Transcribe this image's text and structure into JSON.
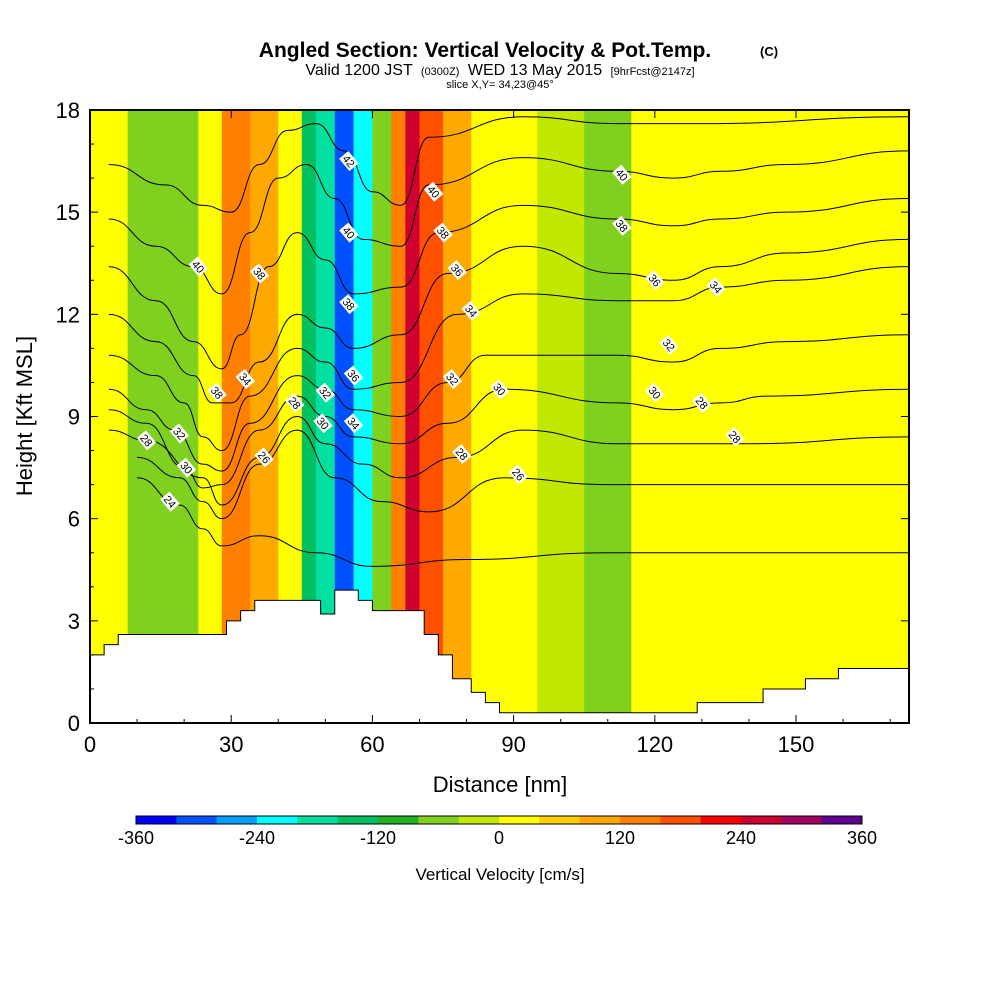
{
  "chart_data": {
    "type": "heatmap",
    "title": "Angled Section: Vertical Velocity & Pot.Temp.",
    "title_mark": "(C)",
    "subtitle": {
      "pre": "Valid 1200 JST",
      "utc": "(0300Z)",
      "date": "WED 13 May 2015",
      "fcst": "[9hrFcst@2147z]"
    },
    "slice_label": "slice X,Y= 34,23@45°",
    "xlabel": "Distance [nm]",
    "ylabel": "Height [Kft MSL]",
    "xlim": [
      0,
      174
    ],
    "ylim": [
      0,
      18
    ],
    "x_ticks": [
      "0",
      "30",
      "60",
      "90",
      "120",
      "150"
    ],
    "y_ticks": [
      "0",
      "3",
      "6",
      "9",
      "12",
      "15",
      "18"
    ],
    "colorbar": {
      "label": "Vertical Velocity [cm/s]",
      "range": [
        -360,
        360
      ],
      "tick_labels": [
        "-360",
        "-240",
        "-120",
        "0",
        "120",
        "240",
        "360"
      ],
      "colors": [
        "#0000ff",
        "#0050ff",
        "#00a0ff",
        "#00ffff",
        "#00e0a0",
        "#00c060",
        "#20b020",
        "#80d020",
        "#c0e800",
        "#ffff00",
        "#ffd000",
        "#ffa800",
        "#ff8000",
        "#ff5000",
        "#ff0000",
        "#d00030",
        "#a00060",
        "#600090"
      ]
    },
    "velocity_bands": [
      {
        "x": [
          0,
          8
        ],
        "value": 15
      },
      {
        "x": [
          8,
          23
        ],
        "value": -70
      },
      {
        "x": [
          23,
          28
        ],
        "value": 30
      },
      {
        "x": [
          28,
          34
        ],
        "value": 150
      },
      {
        "x": [
          34,
          40
        ],
        "value": 110
      },
      {
        "x": [
          40,
          45
        ],
        "value": 20
      },
      {
        "x": [
          45,
          48
        ],
        "value": -130
      },
      {
        "x": [
          48,
          52
        ],
        "value": -200
      },
      {
        "x": [
          52,
          56
        ],
        "value": -300
      },
      {
        "x": [
          56,
          60
        ],
        "value": -220
      },
      {
        "x": [
          60,
          64
        ],
        "value": -60
      },
      {
        "x": [
          64,
          67
        ],
        "value": 150
      },
      {
        "x": [
          67,
          70
        ],
        "value": 260
      },
      {
        "x": [
          70,
          75
        ],
        "value": 180
      },
      {
        "x": [
          75,
          81
        ],
        "value": 80
      },
      {
        "x": [
          81,
          95
        ],
        "value": 15
      },
      {
        "x": [
          95,
          105
        ],
        "value": -10
      },
      {
        "x": [
          105,
          115
        ],
        "value": -80
      },
      {
        "x": [
          115,
          128
        ],
        "value": 30
      },
      {
        "x": [
          128,
          150
        ],
        "value": 10
      },
      {
        "x": [
          150,
          174
        ],
        "value": 20
      }
    ],
    "terrain": [
      [
        0,
        2
      ],
      [
        3,
        2
      ],
      [
        3,
        2.3
      ],
      [
        6,
        2.3
      ],
      [
        6,
        2.6
      ],
      [
        29,
        2.6
      ],
      [
        29,
        3
      ],
      [
        32,
        3
      ],
      [
        32,
        3.3
      ],
      [
        35,
        3.3
      ],
      [
        35,
        3.6
      ],
      [
        49,
        3.6
      ],
      [
        49,
        3.2
      ],
      [
        52,
        3.2
      ],
      [
        52,
        3.9
      ],
      [
        57,
        3.9
      ],
      [
        57,
        3.6
      ],
      [
        60,
        3.6
      ],
      [
        60,
        3.3
      ],
      [
        71,
        3.3
      ],
      [
        71,
        2.6
      ],
      [
        74,
        2.6
      ],
      [
        74,
        2
      ],
      [
        77,
        2
      ],
      [
        77,
        1.3
      ],
      [
        81,
        1.3
      ],
      [
        81,
        0.9
      ],
      [
        84,
        0.9
      ],
      [
        84,
        0.6
      ],
      [
        87,
        0.6
      ],
      [
        87,
        0.3
      ],
      [
        129,
        0.3
      ],
      [
        129,
        0.6
      ],
      [
        143,
        0.6
      ],
      [
        143,
        1
      ],
      [
        152,
        1
      ],
      [
        152,
        1.3
      ],
      [
        159,
        1.3
      ],
      [
        159,
        1.6
      ],
      [
        174,
        1.6
      ]
    ],
    "theta_contours": [
      {
        "level": 24,
        "x": [
          10,
          19,
          24,
          28,
          36,
          48,
          60,
          80,
          110,
          140,
          174
        ],
        "y": [
          7.2,
          6.4,
          5.7,
          5.2,
          5.5,
          5.0,
          4.6,
          4.8,
          5.0,
          5.0,
          5.0
        ]
      },
      {
        "level": 26,
        "x": [
          10,
          19,
          24,
          28,
          36,
          44,
          52,
          62,
          72,
          88,
          110,
          130,
          174
        ],
        "y": [
          7.8,
          7.2,
          6.5,
          6.0,
          7.6,
          8.6,
          7.2,
          6.5,
          6.2,
          7.2,
          7.0,
          7.0,
          7.0
        ]
      },
      {
        "level": 28,
        "x": [
          4,
          12,
          24,
          28,
          36,
          44,
          50,
          58,
          66,
          78,
          92,
          112,
          130,
          140,
          174
        ],
        "y": [
          8.6,
          8.3,
          7.2,
          6.4,
          7.8,
          9.0,
          8.2,
          7.6,
          7.2,
          7.8,
          8.6,
          8.2,
          8.2,
          8.2,
          8.4
        ]
      },
      {
        "level": 30,
        "x": [
          4,
          12,
          20,
          24,
          28,
          36,
          44,
          50,
          56,
          66,
          76,
          88,
          112,
          124,
          134,
          144,
          174
        ],
        "y": [
          9.2,
          8.8,
          7.5,
          6.9,
          7.0,
          8.6,
          9.6,
          9.0,
          8.4,
          8.2,
          8.8,
          9.8,
          9.4,
          9.2,
          9.4,
          9.6,
          9.8
        ]
      },
      {
        "level": 32,
        "x": [
          4,
          12,
          18,
          24,
          28,
          34,
          44,
          50,
          56,
          66,
          76,
          84,
          112,
          124,
          134,
          148,
          174
        ],
        "y": [
          9.8,
          9.2,
          8.6,
          7.6,
          7.4,
          8.8,
          10.2,
          9.8,
          9.2,
          9.0,
          10.0,
          10.8,
          10.8,
          10.6,
          11.0,
          11.2,
          11.4
        ]
      },
      {
        "level": 34,
        "x": [
          4,
          14,
          20,
          24,
          28,
          34,
          44,
          50,
          56,
          66,
          78,
          92,
          112,
          124,
          134,
          148,
          174
        ],
        "y": [
          10.8,
          10.2,
          9.4,
          8.4,
          8.0,
          9.6,
          11.0,
          10.6,
          9.8,
          10.0,
          12.0,
          12.6,
          12.4,
          12.4,
          12.8,
          13.0,
          13.4
        ]
      },
      {
        "level": 36,
        "x": [
          4,
          14,
          22,
          26,
          30,
          36,
          44,
          50,
          56,
          66,
          76,
          92,
          112,
          124,
          134,
          148,
          174
        ],
        "y": [
          12.0,
          11.2,
          10.2,
          9.4,
          9.4,
          10.6,
          12.0,
          11.6,
          11.0,
          11.4,
          13.2,
          14.0,
          13.2,
          13.0,
          13.4,
          13.8,
          14.2
        ]
      },
      {
        "level": 38,
        "x": [
          4,
          14,
          22,
          28,
          32,
          38,
          44,
          50,
          56,
          66,
          74,
          92,
          112,
          124,
          134,
          148,
          174
        ],
        "y": [
          13.4,
          12.4,
          11.2,
          10.4,
          11.4,
          13.4,
          14.4,
          13.6,
          12.6,
          12.8,
          14.4,
          15.2,
          14.8,
          14.6,
          14.8,
          15.0,
          15.4
        ]
      },
      {
        "level": 40,
        "x": [
          4,
          14,
          22,
          28,
          34,
          40,
          46,
          52,
          58,
          66,
          72,
          92,
          112,
          124,
          134,
          148,
          174
        ],
        "y": [
          14.8,
          14.0,
          13.4,
          12.6,
          14.4,
          16.0,
          16.4,
          15.4,
          14.2,
          14.0,
          15.8,
          16.6,
          16.2,
          16.0,
          16.2,
          16.4,
          16.8
        ]
      },
      {
        "level": 42,
        "x": [
          4,
          16,
          24,
          30,
          36,
          42,
          48,
          54,
          60,
          66,
          72,
          92,
          112,
          130,
          174
        ],
        "y": [
          16.4,
          15.8,
          15.2,
          15.0,
          16.4,
          17.4,
          17.6,
          16.8,
          15.6,
          15.2,
          17.2,
          17.8,
          17.6,
          17.6,
          17.8
        ]
      }
    ],
    "contour_labels": [
      {
        "text": "40",
        "x": 23,
        "y": 13.4
      },
      {
        "text": "38",
        "x": 36,
        "y": 13.2
      },
      {
        "text": "38",
        "x": 27,
        "y": 9.7
      },
      {
        "text": "34",
        "x": 33,
        "y": 10.1
      },
      {
        "text": "28",
        "x": 12,
        "y": 8.3
      },
      {
        "text": "32",
        "x": 19,
        "y": 8.5
      },
      {
        "text": "30",
        "x": 20.5,
        "y": 7.5
      },
      {
        "text": "24",
        "x": 17,
        "y": 6.5
      },
      {
        "text": "26",
        "x": 37,
        "y": 7.8
      },
      {
        "text": "28",
        "x": 43.5,
        "y": 9.4
      },
      {
        "text": "32",
        "x": 50,
        "y": 9.7
      },
      {
        "text": "30",
        "x": 49.5,
        "y": 8.8
      },
      {
        "text": "36",
        "x": 56,
        "y": 10.2
      },
      {
        "text": "34",
        "x": 56,
        "y": 8.8
      },
      {
        "text": "38",
        "x": 55,
        "y": 12.3
      },
      {
        "text": "40",
        "x": 55,
        "y": 14.4
      },
      {
        "text": "42",
        "x": 55,
        "y": 16.5
      },
      {
        "text": "40",
        "x": 73,
        "y": 15.6
      },
      {
        "text": "38",
        "x": 75,
        "y": 14.4
      },
      {
        "text": "36",
        "x": 78,
        "y": 13.3
      },
      {
        "text": "34",
        "x": 81,
        "y": 12.1
      },
      {
        "text": "32",
        "x": 77,
        "y": 10.1
      },
      {
        "text": "30",
        "x": 87,
        "y": 9.8
      },
      {
        "text": "28",
        "x": 79,
        "y": 7.9
      },
      {
        "text": "26",
        "x": 91,
        "y": 7.3
      },
      {
        "text": "40",
        "x": 113,
        "y": 16.1
      },
      {
        "text": "38",
        "x": 113,
        "y": 14.6
      },
      {
        "text": "36",
        "x": 120,
        "y": 13.0
      },
      {
        "text": "34",
        "x": 133,
        "y": 12.8
      },
      {
        "text": "32",
        "x": 123,
        "y": 11.1
      },
      {
        "text": "30",
        "x": 120,
        "y": 9.7
      },
      {
        "text": "28",
        "x": 130,
        "y": 9.4
      },
      {
        "text": "28",
        "x": 137,
        "y": 8.4
      }
    ]
  }
}
